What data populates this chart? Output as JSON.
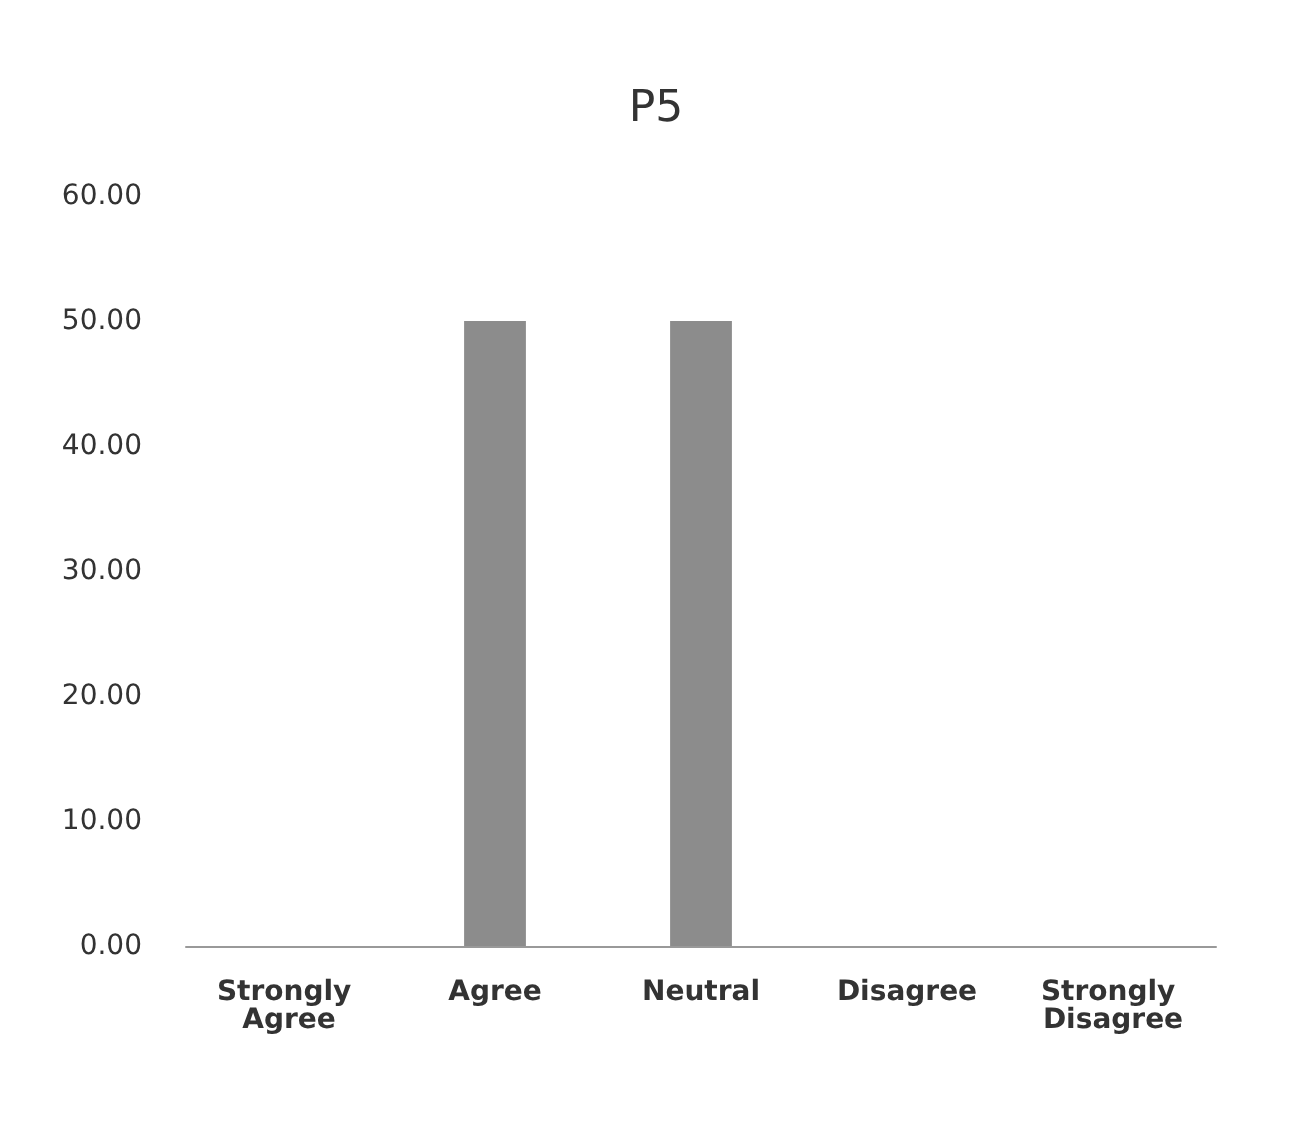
{
  "chart_data": {
    "type": "bar",
    "title": "P5",
    "categories": [
      "Strongly Agree",
      "Agree",
      "Neutral",
      "Disagree",
      "Strongly Disagree"
    ],
    "values": [
      0,
      50,
      50,
      0,
      0
    ],
    "color": "#8c8c8c",
    "ylim": [
      0,
      60
    ],
    "yticks": [
      {
        "value": 0,
        "label": "0.00"
      },
      {
        "value": 10,
        "label": "10.00"
      },
      {
        "value": 20,
        "label": "20.00"
      },
      {
        "value": 30,
        "label": "30.00"
      },
      {
        "value": 40,
        "label": "40.00"
      },
      {
        "value": 50,
        "label": "50.00"
      },
      {
        "value": 60,
        "label": "60.00"
      }
    ],
    "grid": false
  }
}
